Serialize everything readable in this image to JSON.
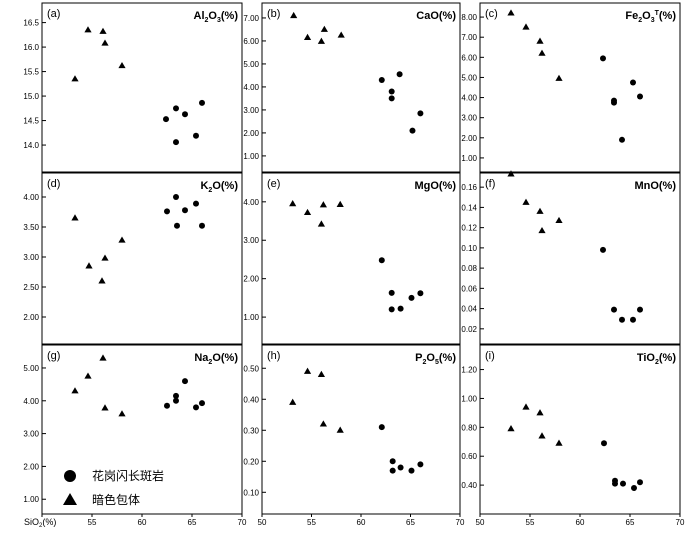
{
  "chart_data": {
    "type": "scatter",
    "x_axis": {
      "label": "SiO2(%)",
      "range": [
        50,
        70
      ],
      "ticks": [
        50,
        55,
        60,
        65,
        70
      ],
      "tick_labels": {
        "col0": [
          "55",
          "60",
          "65",
          "70"
        ],
        "col1": [
          "50",
          "55",
          "60",
          "65",
          "70"
        ],
        "col2": [
          "50",
          "55",
          "60",
          "65",
          "70"
        ]
      }
    },
    "legend": [
      {
        "marker": "circle",
        "label": "花岗闪长斑岩"
      },
      {
        "marker": "triangle",
        "label": "暗色包体"
      }
    ],
    "panels": [
      {
        "label": "(a)",
        "title_base": "Al",
        "title_sub1": "2",
        "title_mid": "O",
        "title_sub2": "3",
        "title_sup": "",
        "title_end": "(%)",
        "ylim": [
          13.45,
          16.9
        ],
        "yticks": [
          14.0,
          14.5,
          15.0,
          15.5,
          16.0,
          16.5
        ],
        "ytick_labels": [
          "14.0",
          "14.5",
          "15.0",
          "15.5",
          "16.0",
          "16.5"
        ],
        "series": [
          {
            "name": "暗色包体",
            "marker": "triangle",
            "points": [
              [
                53.3,
                15.35
              ],
              [
                54.6,
                16.35
              ],
              [
                56.1,
                16.32
              ],
              [
                56.3,
                16.08
              ],
              [
                58.0,
                15.62
              ]
            ]
          },
          {
            "name": "花岗闪长斑岩",
            "marker": "circle",
            "points": [
              [
                62.4,
                14.53
              ],
              [
                63.4,
                14.75
              ],
              [
                63.4,
                14.06
              ],
              [
                64.3,
                14.63
              ],
              [
                65.4,
                14.19
              ],
              [
                66.0,
                14.86
              ]
            ]
          }
        ]
      },
      {
        "label": "(b)",
        "title_base": "CaO",
        "title_sub1": "",
        "title_mid": "",
        "title_sub2": "",
        "title_sup": "",
        "title_end": "(%)",
        "ylim": [
          0.3,
          7.65
        ],
        "yticks": [
          1.0,
          2.0,
          3.0,
          4.0,
          5.0,
          6.0,
          7.0
        ],
        "ytick_labels": [
          "1.00",
          "2.00",
          "3.00",
          "4.00",
          "5.00",
          "6.00",
          "7.00"
        ],
        "series": [
          {
            "name": "暗色包体",
            "marker": "triangle",
            "points": [
              [
                53.2,
                7.1
              ],
              [
                54.6,
                6.15
              ],
              [
                56.0,
                5.98
              ],
              [
                56.3,
                6.5
              ],
              [
                58.0,
                6.25
              ]
            ]
          },
          {
            "name": "花岗闪长斑岩",
            "marker": "circle",
            "points": [
              [
                62.1,
                4.3
              ],
              [
                63.1,
                3.8
              ],
              [
                63.1,
                3.5
              ],
              [
                63.9,
                4.55
              ],
              [
                65.2,
                2.1
              ],
              [
                66.0,
                2.85
              ]
            ]
          }
        ]
      },
      {
        "label": "(c)",
        "title_base": "Fe",
        "title_sub1": "2",
        "title_mid": "O",
        "title_sub2": "3",
        "title_sup": "T",
        "title_end": "(%)",
        "ylim": [
          0.3,
          8.7
        ],
        "yticks": [
          1.0,
          2.0,
          3.0,
          4.0,
          5.0,
          6.0,
          7.0,
          8.0
        ],
        "ytick_labels": [
          "1.00",
          "2.00",
          "3.00",
          "4.00",
          "5.00",
          "6.00",
          "7.00",
          "8.00"
        ],
        "series": [
          {
            "name": "暗色包体",
            "marker": "triangle",
            "points": [
              [
                53.1,
                8.2
              ],
              [
                54.6,
                7.5
              ],
              [
                56.0,
                6.8
              ],
              [
                56.2,
                6.2
              ],
              [
                57.9,
                4.95
              ]
            ]
          },
          {
            "name": "花岗闪长斑岩",
            "marker": "circle",
            "points": [
              [
                62.3,
                5.95
              ],
              [
                63.4,
                3.85
              ],
              [
                63.4,
                3.75
              ],
              [
                64.2,
                1.9
              ],
              [
                65.3,
                4.75
              ],
              [
                66.0,
                4.05
              ]
            ]
          }
        ]
      },
      {
        "label": "(d)",
        "title_base": "K",
        "title_sub1": "2",
        "title_mid": "O",
        "title_sub2": "",
        "title_sup": "",
        "title_end": "(%)",
        "ylim": [
          1.55,
          4.4
        ],
        "yticks": [
          2.0,
          2.5,
          3.0,
          3.5,
          4.0
        ],
        "ytick_labels": [
          "2.00",
          "2.50",
          "3.00",
          "3.50",
          "4.00"
        ],
        "series": [
          {
            "name": "暗色包体",
            "marker": "triangle",
            "points": [
              [
                53.3,
                3.65
              ],
              [
                54.7,
                2.85
              ],
              [
                56.0,
                2.6
              ],
              [
                56.3,
                2.98
              ],
              [
                58.0,
                3.28
              ]
            ]
          },
          {
            "name": "花岗闪长斑岩",
            "marker": "circle",
            "points": [
              [
                62.5,
                3.76
              ],
              [
                63.4,
                4.0
              ],
              [
                63.5,
                3.52
              ],
              [
                64.3,
                3.78
              ],
              [
                65.4,
                3.89
              ],
              [
                66.0,
                3.52
              ]
            ]
          }
        ]
      },
      {
        "label": "(e)",
        "title_base": "MgO",
        "title_sub1": "",
        "title_mid": "",
        "title_sub2": "",
        "title_sup": "",
        "title_end": "(%)",
        "ylim": [
          0.3,
          4.75
        ],
        "yticks": [
          1.0,
          2.0,
          3.0,
          4.0
        ],
        "ytick_labels": [
          "1.00",
          "2.00",
          "3.00",
          "4.00"
        ],
        "series": [
          {
            "name": "暗色包体",
            "marker": "triangle",
            "points": [
              [
                53.1,
                3.95
              ],
              [
                54.6,
                3.72
              ],
              [
                56.0,
                3.42
              ],
              [
                56.2,
                3.92
              ],
              [
                57.9,
                3.93
              ]
            ]
          },
          {
            "name": "花岗闪长斑岩",
            "marker": "circle",
            "points": [
              [
                62.1,
                2.48
              ],
              [
                63.1,
                1.63
              ],
              [
                63.1,
                1.2
              ],
              [
                64.0,
                1.22
              ],
              [
                65.1,
                1.5
              ],
              [
                66.0,
                1.62
              ]
            ]
          }
        ]
      },
      {
        "label": "(f)",
        "title_base": "MnO",
        "title_sub1": "",
        "title_mid": "",
        "title_sub2": "",
        "title_sup": "",
        "title_end": "(%)",
        "ylim": [
          0.005,
          0.174
        ],
        "yticks": [
          0.02,
          0.04,
          0.06,
          0.08,
          0.1,
          0.12,
          0.14,
          0.16
        ],
        "ytick_labels": [
          "0.02",
          "0.04",
          "0.06",
          "0.08",
          "0.10",
          "0.12",
          "0.14",
          "0.16"
        ],
        "series": [
          {
            "name": "暗色包体",
            "marker": "triangle",
            "points": [
              [
                53.1,
                0.173
              ],
              [
                54.6,
                0.145
              ],
              [
                56.0,
                0.136
              ],
              [
                56.2,
                0.117
              ],
              [
                57.9,
                0.127
              ]
            ]
          },
          {
            "name": "花岗闪长斑岩",
            "marker": "circle",
            "points": [
              [
                62.3,
                0.098
              ],
              [
                63.4,
                0.039
              ],
              [
                64.2,
                0.029
              ],
              [
                65.3,
                0.029
              ],
              [
                66.0,
                0.039
              ]
            ]
          }
        ]
      },
      {
        "label": "(g)",
        "title_base": "Na",
        "title_sub1": "2",
        "title_mid": "O",
        "title_sub2": "",
        "title_sup": "",
        "title_end": "(%)",
        "ylim": [
          0.55,
          5.7
        ],
        "yticks": [
          1.0,
          2.0,
          3.0,
          4.0,
          5.0
        ],
        "ytick_labels": [
          "1.00",
          "2.00",
          "3.00",
          "4.00",
          "5.00"
        ],
        "series": [
          {
            "name": "暗色包体",
            "marker": "triangle",
            "points": [
              [
                53.3,
                4.3
              ],
              [
                54.6,
                4.75
              ],
              [
                56.1,
                5.3
              ],
              [
                56.3,
                3.78
              ],
              [
                58.0,
                3.6
              ]
            ]
          },
          {
            "name": "花岗闪长斑岩",
            "marker": "circle",
            "points": [
              [
                62.5,
                3.85
              ],
              [
                63.4,
                4.15
              ],
              [
                63.4,
                4.0
              ],
              [
                64.3,
                4.6
              ],
              [
                65.4,
                3.8
              ],
              [
                66.0,
                3.93
              ]
            ]
          }
        ]
      },
      {
        "label": "(h)",
        "title_base": "P",
        "title_sub1": "2",
        "title_mid": "O",
        "title_sub2": "5",
        "title_sup": "",
        "title_end": "(%)",
        "ylim": [
          0.03,
          0.575
        ],
        "yticks": [
          0.1,
          0.2,
          0.3,
          0.4,
          0.5
        ],
        "ytick_labels": [
          "0.10",
          "0.20",
          "0.30",
          "0.40",
          "0.50"
        ],
        "series": [
          {
            "name": "暗色包体",
            "marker": "triangle",
            "points": [
              [
                53.1,
                0.39
              ],
              [
                54.6,
                0.49
              ],
              [
                56.0,
                0.48
              ],
              [
                56.2,
                0.32
              ],
              [
                57.9,
                0.3
              ]
            ]
          },
          {
            "name": "花岗闪长斑岩",
            "marker": "circle",
            "points": [
              [
                62.1,
                0.31
              ],
              [
                63.2,
                0.2
              ],
              [
                63.2,
                0.17
              ],
              [
                64.0,
                0.18
              ],
              [
                65.1,
                0.17
              ],
              [
                66.0,
                0.19
              ]
            ]
          }
        ]
      },
      {
        "label": "(i)",
        "title_base": "TiO",
        "title_sub1": "2",
        "title_mid": "",
        "title_sub2": "",
        "title_sup": "",
        "title_end": "(%)",
        "ylim": [
          0.2,
          1.37
        ],
        "yticks": [
          0.4,
          0.6,
          0.8,
          1.0,
          1.2
        ],
        "ytick_labels": [
          "0.40",
          "0.60",
          "0.80",
          "1.00",
          "1.20"
        ],
        "series": [
          {
            "name": "暗色包体",
            "marker": "triangle",
            "points": [
              [
                53.1,
                0.79
              ],
              [
                54.6,
                0.94
              ],
              [
                56.0,
                0.9
              ],
              [
                56.2,
                0.74
              ],
              [
                57.9,
                0.69
              ]
            ]
          },
          {
            "name": "花岗闪长斑岩",
            "marker": "circle",
            "points": [
              [
                62.4,
                0.69
              ],
              [
                63.5,
                0.43
              ],
              [
                63.5,
                0.41
              ],
              [
                64.3,
                0.41
              ],
              [
                65.4,
                0.38
              ],
              [
                66.0,
                0.42
              ]
            ]
          }
        ]
      }
    ]
  }
}
